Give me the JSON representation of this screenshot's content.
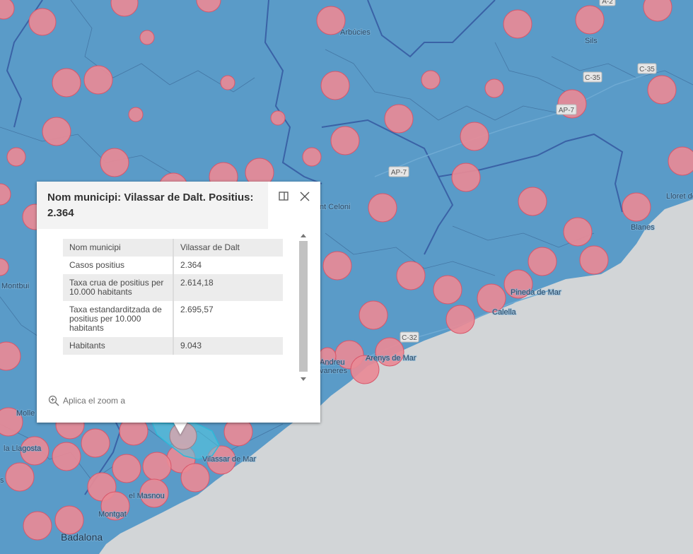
{
  "map": {
    "colors": {
      "sea": "#d2d5d7",
      "land": "#5a9bc8",
      "circle_fill": "#e88a96",
      "circle_stroke": "#d8566a",
      "county_line": "#3a62a6"
    },
    "places": [
      "Arbúcies",
      "Sils",
      "Lloret de",
      "Blanes",
      "Pineda de Mar",
      "Calella",
      "Arenys de Mar",
      "Andreu",
      "vaneres",
      "nt Celoni",
      "Montbui",
      "Molle",
      "la Llagosta",
      "Vilassar de Mar",
      "el Masnou",
      "Montgat",
      "Badalona",
      "s"
    ],
    "road_shields": [
      "A-2",
      "C-35",
      "C-35",
      "AP-7",
      "AP-7",
      "C-32"
    ],
    "selected_municipality": "Vilassar de Dalt"
  },
  "popup": {
    "title": "Nom municipi: Vilassar de Dalt. Positius: 2.364",
    "dock_icon": "dock-icon",
    "close_icon": "close-icon",
    "rows": [
      {
        "key": "Nom municipi",
        "value": "Vilassar de Dalt"
      },
      {
        "key": "Casos positius",
        "value": "2.364"
      },
      {
        "key": "Taxa crua de positius per 10.000 habitants",
        "value": "2.614,18"
      },
      {
        "key": "Taxa estandarditzada de positius per 10.000 habitants",
        "value": "2.695,57"
      },
      {
        "key": "Habitants",
        "value": "9.043"
      }
    ],
    "zoom_label": "Aplica el zoom a",
    "zoom_icon": "zoom-in-icon"
  }
}
